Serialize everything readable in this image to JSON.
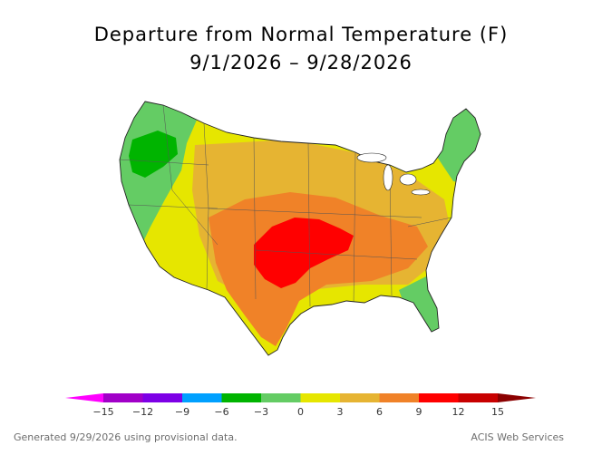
{
  "title": "Departure from Normal Temperature (F)",
  "subtitle": "9/1/2026 – 9/28/2026",
  "footer_left": "Generated 9/29/2026 using provisional data.",
  "footer_right": "ACIS Web Services",
  "legend": {
    "ticks": [
      "−15",
      "−12",
      "−9",
      "−6",
      "−3",
      "0",
      "3",
      "6",
      "9",
      "12",
      "15"
    ],
    "colors": [
      "#ff00ff",
      "#a100c8",
      "#7d00e6",
      "#00a0ff",
      "#00b400",
      "#64cc64",
      "#e6e600",
      "#e6b432",
      "#f08228",
      "#ff0000",
      "#c80000",
      "#8b0000"
    ]
  },
  "map": {
    "region": "contiguous-united-states",
    "colors": {
      "cool_green": "#00b400",
      "light_green": "#64cc64",
      "yellow": "#e6e600",
      "gold": "#e6b432",
      "orange": "#f08228",
      "red": "#ff0000"
    }
  }
}
